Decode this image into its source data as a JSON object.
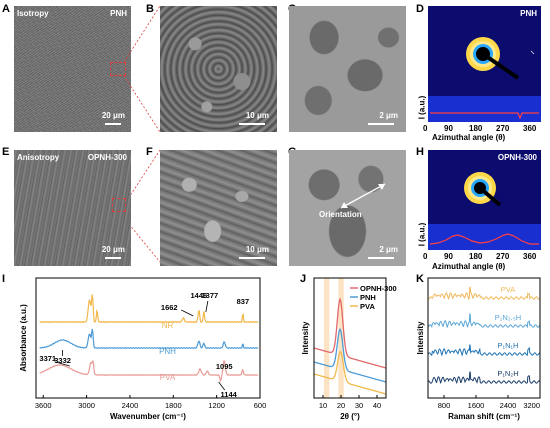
{
  "panels": {
    "A": {
      "letter": "A",
      "label_left": "Isotropy",
      "label_right": "PNH",
      "scale": "20 μm"
    },
    "B": {
      "letter": "B",
      "scale": "10 μm"
    },
    "C": {
      "letter": "C",
      "scale": "2 μm"
    },
    "D": {
      "letter": "D",
      "label": "PNH",
      "xlabel": "Azimuthal angle (θ)",
      "ylabel": "I (a.u.)",
      "ticks": [
        "0",
        "90",
        "180",
        "270",
        "360"
      ]
    },
    "E": {
      "letter": "E",
      "label_left": "Anisotropy",
      "label_right": "OPNH-300",
      "scale": "20 μm"
    },
    "F": {
      "letter": "F",
      "scale": "10 μm"
    },
    "G": {
      "letter": "G",
      "scale": "2 μm",
      "annotation": "Orientation"
    },
    "H": {
      "letter": "H",
      "label": "OPNH-300",
      "xlabel": "Azimuthal angle (θ)",
      "ylabel": "I (a.u.)",
      "ticks": [
        "0",
        "90",
        "180",
        "270",
        "360"
      ]
    },
    "I": {
      "letter": "I"
    },
    "J": {
      "letter": "J"
    },
    "K": {
      "letter": "K"
    }
  },
  "colors": {
    "nr": "#f2b84b",
    "pnh": "#4d9bd6",
    "pva": "#e89a95",
    "opnh": "#e0686a",
    "raman_pva": "#f0b85a",
    "raman_p1n25h": "#5aa6d8",
    "raman_p1n1h": "#1f73b4",
    "raman_p1n2h": "#1a3d6b",
    "highlight": "#fbe3c3",
    "polar_bg": "#0c0c6e"
  },
  "chart_data": [
    {
      "panel": "I",
      "type": "line",
      "xlabel": "Wavenumber (cm⁻¹)",
      "ylabel": "Absorbance (a.u.)",
      "xlim": [
        3700,
        600
      ],
      "xticks": [
        "3600",
        "3000",
        "2400",
        "1800",
        "1200",
        "600"
      ],
      "series": [
        {
          "name": "NR",
          "peaks": [
            {
              "label": "1662",
              "x": 1662
            },
            {
              "label": "1446",
              "x": 1446
            },
            {
              "label": "1377",
              "x": 1377
            },
            {
              "label": "837",
              "x": 837
            }
          ]
        },
        {
          "name": "PNH",
          "peaks": [
            {
              "label": "3332",
              "x": 3332
            }
          ]
        },
        {
          "name": "PVA",
          "peaks": [
            {
              "label": "3371",
              "x": 3371
            },
            {
              "label": "1095",
              "x": 1095
            },
            {
              "label": "1144",
              "x": 1144
            }
          ]
        }
      ]
    },
    {
      "panel": "J",
      "type": "line",
      "xlabel": "2θ (°)",
      "ylabel": "Intensity",
      "xlim": [
        5,
        45
      ],
      "xticks": [
        "10",
        "20",
        "30",
        "40"
      ],
      "series": [
        {
          "name": "OPNH-300",
          "peak_x": 19.5
        },
        {
          "name": "PNH",
          "peak_x": 19.5
        },
        {
          "name": "PVA",
          "peak_x": 19.7
        }
      ],
      "highlight_bands": [
        [
          10.5,
          13.5
        ],
        [
          18.5,
          21.5
        ]
      ]
    },
    {
      "panel": "K",
      "type": "line",
      "xlabel": "Raman shift (cm⁻¹)",
      "ylabel": "Intensity",
      "xlim": [
        400,
        3200
      ],
      "xticks": [
        "800",
        "1600",
        "2400",
        "3200"
      ],
      "series": [
        {
          "name": "PVA"
        },
        {
          "name": "P₁N₂.₅H"
        },
        {
          "name": "P₁N₁H"
        },
        {
          "name": "P₁N₂H"
        }
      ]
    }
  ]
}
